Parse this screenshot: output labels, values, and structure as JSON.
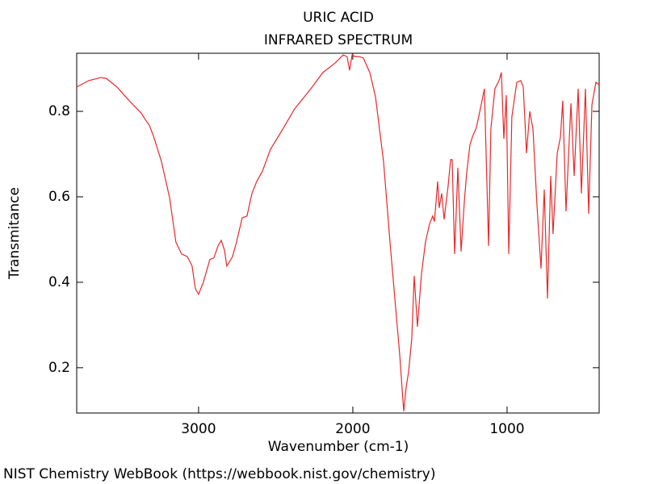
{
  "chart_data": {
    "type": "line",
    "title": "URIC ACID",
    "subtitle": "INFRARED SPECTRUM",
    "x_label": "Wavenumber (cm-1)",
    "y_label": "Transmitance",
    "footer": "NIST Chemistry WebBook (https://webbook.nist.gov/chemistry)",
    "color": "#e8282a",
    "xlim": [
      3790,
      403
    ],
    "xticks": [
      3000,
      2000,
      1000
    ],
    "ylim": [
      0.094,
      0.936
    ],
    "yticks": [
      0.2,
      0.4,
      0.6,
      0.8
    ],
    "x": [
      3790,
      3712,
      3634,
      3598,
      3529,
      3450,
      3372,
      3346,
      3320,
      3293,
      3241,
      3188,
      3147,
      3110,
      3073,
      3042,
      3021,
      3000,
      2969,
      2927,
      2901,
      2874,
      2853,
      2832,
      2817,
      2780,
      2754,
      2717,
      2686,
      2654,
      2623,
      2586,
      2534,
      2455,
      2377,
      2272,
      2194,
      2115,
      2063,
      2037,
      2021,
      2005,
      1984,
      1958,
      1932,
      1890,
      1853,
      1801,
      1759,
      1723,
      1696,
      1670,
      1654,
      1639,
      1618,
      1602,
      1581,
      1555,
      1529,
      1503,
      1482,
      1471,
      1450,
      1440,
      1424,
      1408,
      1382,
      1366,
      1356,
      1340,
      1319,
      1298,
      1277,
      1262,
      1241,
      1225,
      1199,
      1168,
      1147,
      1120,
      1105,
      1079,
      1052,
      1037,
      1021,
      1005,
      989,
      969,
      937,
      911,
      895,
      874,
      853,
      832,
      806,
      780,
      759,
      738,
      717,
      702,
      675,
      654,
      639,
      618,
      586,
      565,
      539,
      518,
      492,
      471,
      450,
      424,
      403
    ],
    "values": [
      0.857,
      0.872,
      0.879,
      0.877,
      0.857,
      0.825,
      0.796,
      0.781,
      0.768,
      0.743,
      0.683,
      0.598,
      0.494,
      0.466,
      0.46,
      0.438,
      0.385,
      0.372,
      0.4,
      0.453,
      0.457,
      0.485,
      0.498,
      0.475,
      0.438,
      0.46,
      0.494,
      0.551,
      0.555,
      0.608,
      0.636,
      0.66,
      0.711,
      0.758,
      0.806,
      0.853,
      0.891,
      0.913,
      0.932,
      0.928,
      0.896,
      0.932,
      0.928,
      0.928,
      0.925,
      0.891,
      0.834,
      0.683,
      0.494,
      0.343,
      0.23,
      0.098,
      0.155,
      0.189,
      0.268,
      0.415,
      0.296,
      0.419,
      0.494,
      0.536,
      0.555,
      0.542,
      0.636,
      0.574,
      0.608,
      0.547,
      0.626,
      0.687,
      0.687,
      0.466,
      0.668,
      0.472,
      0.589,
      0.655,
      0.721,
      0.74,
      0.762,
      0.815,
      0.853,
      0.485,
      0.759,
      0.853,
      0.872,
      0.891,
      0.736,
      0.838,
      0.466,
      0.787,
      0.868,
      0.872,
      0.857,
      0.702,
      0.8,
      0.758,
      0.579,
      0.432,
      0.617,
      0.362,
      0.649,
      0.513,
      0.702,
      0.74,
      0.825,
      0.566,
      0.819,
      0.649,
      0.853,
      0.608,
      0.853,
      0.56,
      0.815,
      0.868,
      0.862
    ]
  }
}
